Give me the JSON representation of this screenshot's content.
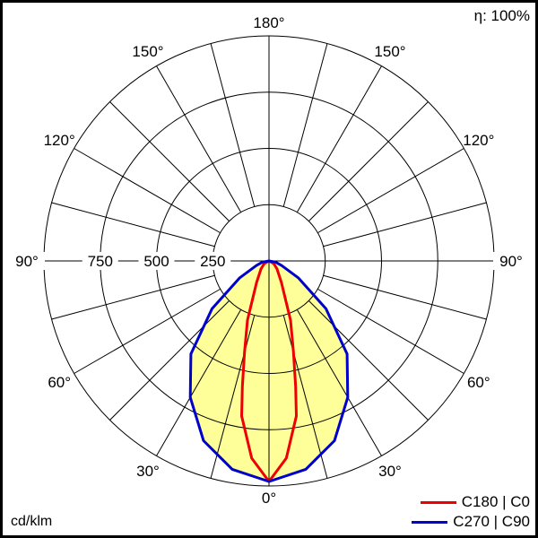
{
  "chart_data": {
    "type": "polar",
    "efficiency_label": "η: 100%",
    "unit_label": "cd/klm",
    "radial_ticks": [
      250,
      500,
      750,
      1000
    ],
    "radial_tick_labels": [
      "250",
      "500",
      "750"
    ],
    "rmax": 1000,
    "angle_labels": [
      "0°",
      "30°",
      "60°",
      "90°",
      "120°",
      "150°",
      "180°"
    ],
    "angle_label_values": [
      0,
      30,
      60,
      90,
      120,
      150,
      180
    ],
    "fill_color": "#ffff99",
    "series": [
      {
        "name": "C180 | C0",
        "color": "#ee0000",
        "angles": [
          0,
          5,
          10,
          12,
          15,
          20,
          30,
          45,
          60,
          90
        ],
        "values": [
          980,
          880,
          700,
          570,
          420,
          280,
          110,
          50,
          25,
          0
        ]
      },
      {
        "name": "C270 | C90",
        "color": "#0000cc",
        "angles": [
          0,
          10,
          20,
          30,
          40,
          50,
          60,
          70,
          80,
          90
        ],
        "values": [
          980,
          940,
          850,
          700,
          540,
          330,
          150,
          60,
          30,
          0
        ]
      }
    ]
  }
}
